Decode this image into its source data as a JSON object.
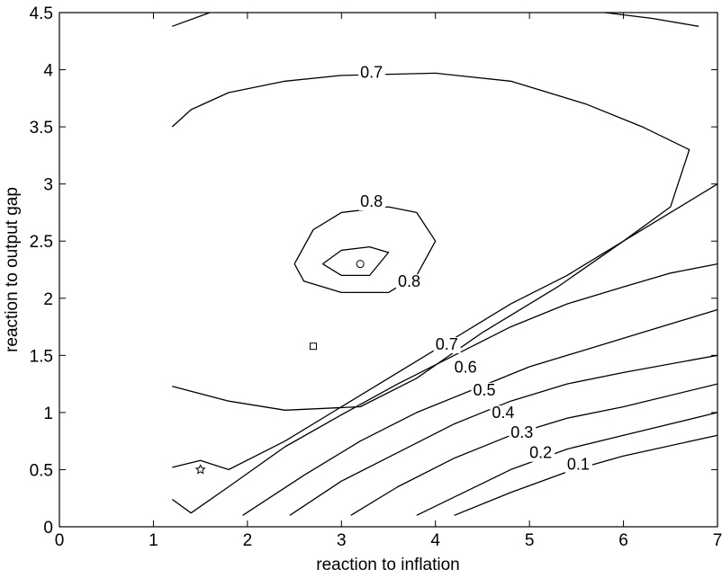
{
  "chart_data": {
    "type": "contour",
    "title": "",
    "xlabel": "reaction to inflation",
    "ylabel": "reaction to output gap",
    "xlim": [
      0,
      7
    ],
    "ylim": [
      0,
      4.5
    ],
    "xticks": [
      0,
      1,
      2,
      3,
      4,
      5,
      6,
      7
    ],
    "yticks": [
      0,
      0.5,
      1,
      1.5,
      2,
      2.5,
      3,
      3.5,
      4,
      4.5
    ],
    "grid": false,
    "contours": [
      {
        "level": 0.7,
        "label": "0.7",
        "label_pos": [
          3.2,
          3.93
        ],
        "points": [
          [
            1.2,
            3.5
          ],
          [
            1.4,
            3.65
          ],
          [
            1.8,
            3.8
          ],
          [
            2.4,
            3.9
          ],
          [
            3.0,
            3.95
          ],
          [
            4.0,
            3.97
          ],
          [
            4.8,
            3.9
          ],
          [
            5.6,
            3.7
          ],
          [
            6.2,
            3.5
          ],
          [
            6.7,
            3.3
          ],
          [
            6.5,
            2.8
          ],
          [
            6.0,
            2.5
          ],
          [
            5.3,
            2.1
          ],
          [
            4.5,
            1.7
          ],
          [
            3.8,
            1.3
          ],
          [
            3.2,
            1.05
          ],
          [
            2.4,
            1.02
          ],
          [
            1.8,
            1.1
          ],
          [
            1.2,
            1.23
          ]
        ]
      },
      {
        "level": 0.7,
        "label": "",
        "label_pos": null,
        "points": [
          [
            1.2,
            4.38
          ],
          [
            1.6,
            4.5
          ]
        ]
      },
      {
        "level": 0.7,
        "label": "",
        "label_pos": null,
        "points": [
          [
            5.8,
            4.5
          ],
          [
            6.3,
            4.45
          ],
          [
            6.8,
            4.38
          ]
        ]
      },
      {
        "level": 0.8,
        "label": "0.8",
        "label_pos": [
          3.2,
          2.8
        ],
        "points": [
          [
            2.5,
            2.3
          ],
          [
            2.7,
            2.6
          ],
          [
            3.0,
            2.75
          ],
          [
            3.5,
            2.8
          ],
          [
            3.8,
            2.75
          ],
          [
            4.0,
            2.5
          ],
          [
            3.8,
            2.2
          ],
          [
            3.5,
            2.05
          ],
          [
            3.0,
            2.05
          ],
          [
            2.6,
            2.15
          ],
          [
            2.5,
            2.3
          ]
        ]
      },
      {
        "level": 0.8,
        "label": "0.8",
        "label_pos": [
          3.6,
          2.1
        ],
        "points": [
          [
            2.8,
            2.3
          ],
          [
            3.0,
            2.42
          ],
          [
            3.3,
            2.45
          ],
          [
            3.5,
            2.4
          ],
          [
            3.3,
            2.2
          ],
          [
            3.0,
            2.2
          ],
          [
            2.8,
            2.3
          ]
        ]
      },
      {
        "level": 0.7,
        "label": "0.7",
        "label_pos": [
          4.0,
          1.55
        ],
        "points": [
          [
            1.2,
            0.52
          ],
          [
            1.5,
            0.58
          ],
          [
            1.8,
            0.5
          ],
          [
            2.4,
            0.75
          ],
          [
            3.0,
            1.05
          ],
          [
            3.6,
            1.35
          ],
          [
            4.2,
            1.65
          ],
          [
            4.8,
            1.95
          ],
          [
            5.4,
            2.2
          ],
          [
            6.0,
            2.5
          ],
          [
            6.5,
            2.75
          ],
          [
            7.0,
            3.0
          ]
        ]
      },
      {
        "level": 0.6,
        "label": "0.6",
        "label_pos": [
          4.2,
          1.35
        ],
        "points": [
          [
            1.2,
            0.24
          ],
          [
            1.4,
            0.12
          ],
          [
            1.8,
            0.35
          ],
          [
            2.4,
            0.7
          ],
          [
            3.0,
            0.98
          ],
          [
            3.6,
            1.25
          ],
          [
            4.2,
            1.5
          ],
          [
            4.8,
            1.75
          ],
          [
            5.4,
            1.95
          ],
          [
            6.0,
            2.1
          ],
          [
            6.5,
            2.22
          ],
          [
            7.0,
            2.3
          ]
        ]
      },
      {
        "level": 0.5,
        "label": "0.5",
        "label_pos": [
          4.4,
          1.15
        ],
        "points": [
          [
            1.95,
            0.1
          ],
          [
            2.6,
            0.45
          ],
          [
            3.2,
            0.75
          ],
          [
            3.8,
            1.0
          ],
          [
            4.4,
            1.2
          ],
          [
            5.0,
            1.4
          ],
          [
            5.6,
            1.55
          ],
          [
            6.2,
            1.7
          ],
          [
            7.0,
            1.9
          ]
        ]
      },
      {
        "level": 0.4,
        "label": "0.4",
        "label_pos": [
          4.6,
          0.95
        ],
        "points": [
          [
            2.45,
            0.1
          ],
          [
            3.0,
            0.4
          ],
          [
            3.6,
            0.65
          ],
          [
            4.2,
            0.9
          ],
          [
            4.8,
            1.1
          ],
          [
            5.4,
            1.25
          ],
          [
            6.0,
            1.35
          ],
          [
            7.0,
            1.5
          ]
        ]
      },
      {
        "level": 0.3,
        "label": "0.3",
        "label_pos": [
          4.8,
          0.78
        ],
        "points": [
          [
            3.1,
            0.1
          ],
          [
            3.6,
            0.35
          ],
          [
            4.2,
            0.6
          ],
          [
            4.8,
            0.8
          ],
          [
            5.4,
            0.95
          ],
          [
            6.0,
            1.05
          ],
          [
            7.0,
            1.25
          ]
        ]
      },
      {
        "level": 0.2,
        "label": "0.2",
        "label_pos": [
          5.0,
          0.6
        ],
        "points": [
          [
            3.8,
            0.1
          ],
          [
            4.3,
            0.3
          ],
          [
            4.8,
            0.5
          ],
          [
            5.4,
            0.68
          ],
          [
            6.0,
            0.8
          ],
          [
            7.0,
            1.0
          ]
        ]
      },
      {
        "level": 0.1,
        "label": "0.1",
        "label_pos": [
          5.4,
          0.5
        ],
        "points": [
          [
            4.2,
            0.1
          ],
          [
            4.8,
            0.3
          ],
          [
            5.4,
            0.48
          ],
          [
            6.0,
            0.62
          ],
          [
            7.0,
            0.8
          ]
        ]
      }
    ],
    "markers": [
      {
        "shape": "circle",
        "x": 3.2,
        "y": 2.3
      },
      {
        "shape": "square",
        "x": 2.7,
        "y": 1.58
      },
      {
        "shape": "star",
        "x": 1.5,
        "y": 0.5
      }
    ]
  }
}
